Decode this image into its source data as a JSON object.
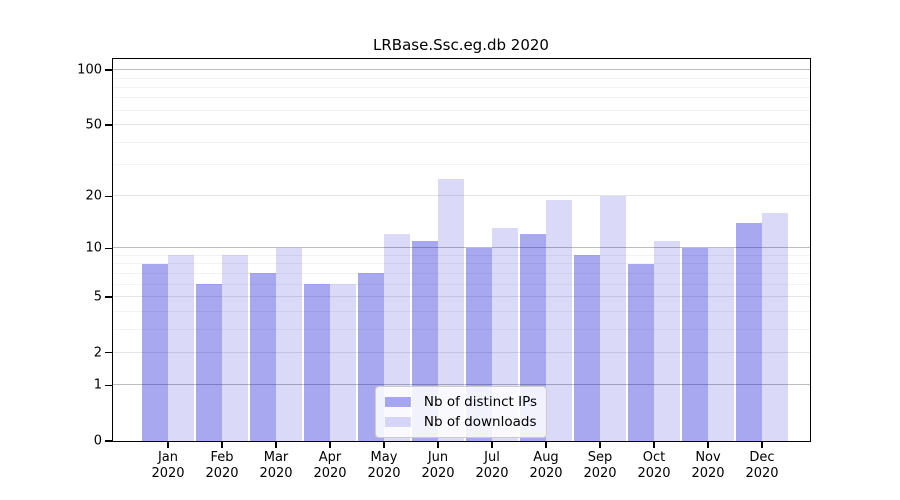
{
  "chart_data": {
    "type": "bar",
    "title": "LRBase.Ssc.eg.db 2020",
    "categories": [
      "Jan 2020",
      "Feb 2020",
      "Mar 2020",
      "Apr 2020",
      "May 2020",
      "Jun 2020",
      "Jul 2020",
      "Aug 2020",
      "Sep 2020",
      "Oct 2020",
      "Nov 2020",
      "Dec 2020"
    ],
    "series": [
      {
        "name": "Nb of distinct IPs",
        "color": "#0505D759",
        "values": [
          8,
          6,
          7,
          6,
          7,
          11,
          10,
          12,
          9,
          8,
          10,
          14
        ]
      },
      {
        "name": "Nb of downloads",
        "color": "#0808CD26",
        "values": [
          9,
          9,
          10,
          6,
          12,
          25,
          13,
          19,
          20,
          11,
          10,
          16
        ]
      }
    ],
    "yscale": "log1p",
    "ylim": [
      0,
      115
    ],
    "y_ticks": [
      0,
      1,
      2,
      5,
      10,
      20,
      50,
      100
    ],
    "y_minor_gridlines": [
      3,
      4,
      6,
      7,
      8,
      9,
      30,
      40,
      60,
      70,
      80,
      90
    ],
    "grid": true,
    "legend_position": "lower center",
    "xlabel": "",
    "ylabel": ""
  },
  "colors": {
    "grid_decade": "#bdbdbd",
    "grid_labeled": "#e5e5e5",
    "grid_minor": "#f2f2f2",
    "spine": "#000000",
    "background": "#ffffff"
  }
}
